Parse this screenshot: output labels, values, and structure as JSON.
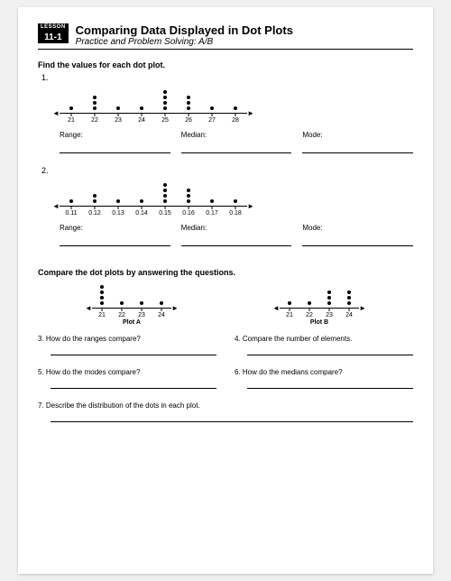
{
  "header": {
    "lesson_word": "LESSON",
    "lesson_num": "11-1",
    "title": "Comparing Data Displayed in Dot Plots",
    "subtitle": "Practice and Problem Solving: A/B"
  },
  "section1": {
    "heading": "Find the values for each dot plot.",
    "problems": [
      {
        "num": "1.",
        "labels": [
          "21",
          "22",
          "23",
          "24",
          "25",
          "26",
          "27",
          "28"
        ],
        "dots": [
          1,
          3,
          1,
          1,
          4,
          3,
          1,
          1
        ],
        "dot_color": "#000000"
      },
      {
        "num": "2.",
        "labels": [
          "0.11",
          "0.12",
          "0.13",
          "0.14",
          "0.15",
          "0.16",
          "0.17",
          "0.18"
        ],
        "dots": [
          1,
          2,
          1,
          1,
          4,
          3,
          1,
          1
        ],
        "dot_color": "#000000"
      }
    ],
    "stats": {
      "range": "Range:",
      "median": "Median:",
      "mode": "Mode:"
    }
  },
  "section2": {
    "heading": "Compare the dot plots by answering the questions.",
    "plotA": {
      "title": "Plot A",
      "labels": [
        "21",
        "22",
        "23",
        "24"
      ],
      "dots": [
        4,
        1,
        1,
        1
      ]
    },
    "plotB": {
      "title": "Plot B",
      "labels": [
        "21",
        "22",
        "23",
        "24"
      ],
      "dots": [
        1,
        1,
        3,
        3
      ]
    },
    "questions": {
      "q3": "3.  How do the ranges compare?",
      "q4": "4.  Compare the number of elements.",
      "q5": "5.  How do the modes compare?",
      "q6": "6.  How do the medians compare?",
      "q7": "7.  Describe the distribution of the dots in each plot."
    }
  }
}
